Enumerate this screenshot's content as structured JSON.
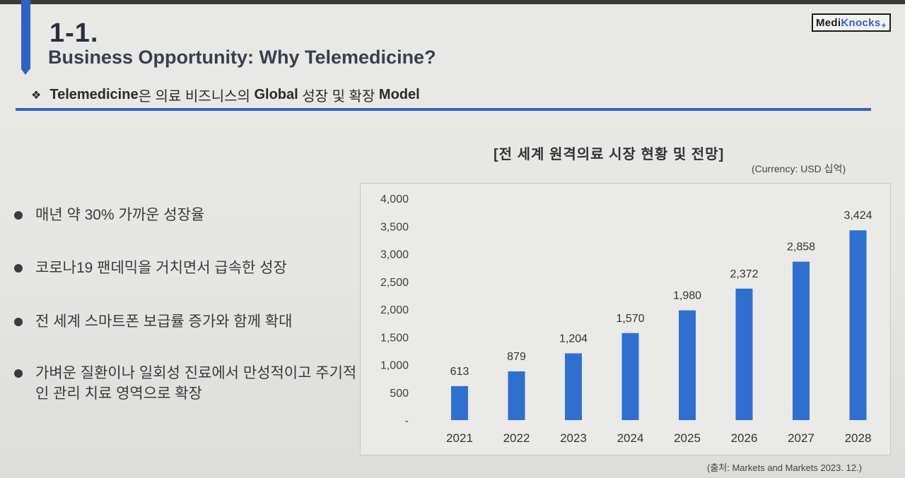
{
  "header": {
    "slide_number": "1-1.",
    "title": "Business Opportunity: Why Telemedicine?",
    "logo_part1": "Medi",
    "logo_part2": "Knocks",
    "logo_symbol": "+"
  },
  "subtitle": {
    "icon": "❖",
    "prefix": "Telemedicine",
    "middle1": "은 의료 비즈니스의 ",
    "bold2": "Global",
    "middle2": " 성장 및 확장 ",
    "bold3": "Model"
  },
  "bullets": [
    "매년 약 30% 가까운 성장율",
    "코로나19 팬데믹을 거치면서 급속한 성장",
    "전 세계 스마트폰 보급률 증가와 함께 확대",
    "가벼운 질환이나 일회성 진료에서 만성적이고 주기적인 관리 치료 영역으로 확장"
  ],
  "chart_meta": {
    "title": "[전 세계 원격의료 시장 현황 및 전망]",
    "currency": "(Currency: USD 십억)",
    "source": "(출처: Markets and Markets 2023. 12.)"
  },
  "colors": {
    "accent": "#2f62c9",
    "bar": "#2f6fd0"
  },
  "chart_data": {
    "type": "bar",
    "title": "[전 세계 원격의료 시장 현황 및 전망]",
    "categories": [
      "2021",
      "2022",
      "2023",
      "2024",
      "2025",
      "2026",
      "2027",
      "2028"
    ],
    "values": [
      613,
      879,
      1204,
      1570,
      1980,
      2372,
      2858,
      3424
    ],
    "data_labels": [
      "613",
      "879",
      "1,204",
      "1,570",
      "1,980",
      "2,372",
      "2,858",
      "3,424"
    ],
    "y_ticks": [
      0,
      500,
      1000,
      1500,
      2000,
      2500,
      3000,
      3500,
      4000
    ],
    "y_tick_labels": [
      "-",
      "500",
      "1,000",
      "1,500",
      "2,000",
      "2,500",
      "3,000",
      "3,500",
      "4,000"
    ],
    "ylim": [
      0,
      4000
    ],
    "grid": false,
    "legend": "none"
  }
}
